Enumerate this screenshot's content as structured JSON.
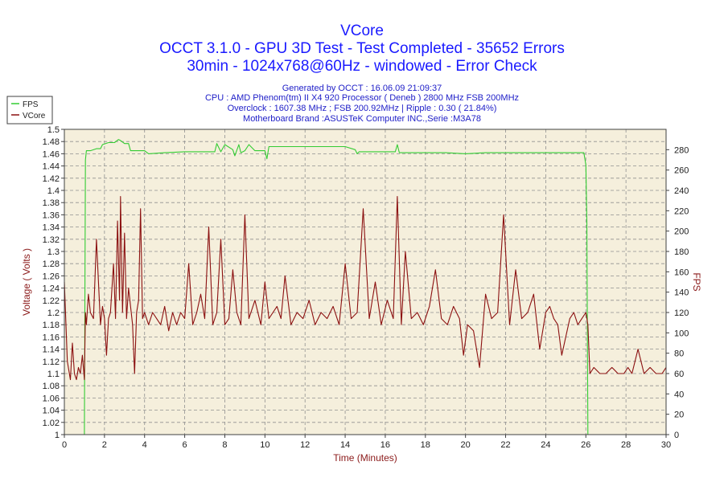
{
  "header": {
    "title": "VCore",
    "subtitle1": "OCCT 3.1.0 - GPU 3D Test - Test Completed - 35652 Errors",
    "subtitle2": "30min - 1024x768@60Hz - windowed - Error Check"
  },
  "info": {
    "generated": "Generated by OCCT : 16.06.09 21:09:37",
    "cpu": "CPU : AMD Phenom(tm) II X4 920 Processor ( Deneb ) 2800 MHz FSB 200MHz",
    "overclock": "Overclock : 1607.38 MHz ; FSB 200.92MHz | Ripple : 0.30 ( 21.84%)",
    "motherboard": "Motherboard Brand :ASUSTeK Computer INC.,Serie :M3A78"
  },
  "colors": {
    "fps": "#33cc33",
    "vcore": "#8b1010",
    "plot_bg": "#f5efdc",
    "title": "#1a1aff",
    "grid": "#909090"
  },
  "chart_data": {
    "type": "line",
    "title": "VCore",
    "xlabel": "Time (Minutes)",
    "ylabel": "Voltage ( Volts )",
    "y2label": "FPS",
    "xlim": [
      0,
      30
    ],
    "ylim": [
      1.0,
      1.5
    ],
    "y2lim": [
      0,
      300
    ],
    "x_ticks": [
      0,
      2,
      4,
      6,
      8,
      10,
      12,
      14,
      16,
      18,
      20,
      22,
      24,
      26,
      28,
      30
    ],
    "y_ticks": [
      "1",
      "1.02",
      "1.04",
      "1.06",
      "1.08",
      "1.1",
      "1.12",
      "1.14",
      "1.16",
      "1.18",
      "1.2",
      "1.22",
      "1.24",
      "1.26",
      "1.28",
      "1.3",
      "1.32",
      "1.34",
      "1.36",
      "1.38",
      "1.4",
      "1.42",
      "1.44",
      "1.46",
      "1.48",
      "1.5"
    ],
    "y2_ticks": [
      0,
      20,
      40,
      60,
      80,
      100,
      120,
      140,
      160,
      180,
      200,
      220,
      240,
      260,
      280
    ],
    "grid": true,
    "legend": "top-left",
    "series": [
      {
        "name": "FPS",
        "axis": "right",
        "x": [
          0,
          1.0,
          1.05,
          1.1,
          1.3,
          1.6,
          1.8,
          1.9,
          2.2,
          2.5,
          2.7,
          2.8,
          3.0,
          3.2,
          3.3,
          3.5,
          4.0,
          4.2,
          5.0,
          6.0,
          7.0,
          7.5,
          7.6,
          7.8,
          8.0,
          8.4,
          8.5,
          8.7,
          8.8,
          9.0,
          9.2,
          9.5,
          10.0,
          10.1,
          10.2,
          10.5,
          11.0,
          12.0,
          13.0,
          14.0,
          14.5,
          14.6,
          14.7,
          15.0,
          15.5,
          16.0,
          16.5,
          16.6,
          16.7,
          17.0,
          18.0,
          19.0,
          20.0,
          21.0,
          22.0,
          23.0,
          24.0,
          25.0,
          25.9,
          26.0,
          26.05,
          26.1
        ],
        "values": [
          0,
          0,
          270,
          279,
          279,
          281,
          281,
          285,
          287,
          287,
          290,
          289,
          286,
          286,
          279,
          279,
          279,
          276,
          277,
          278,
          278,
          278,
          286,
          278,
          285,
          280,
          274,
          285,
          277,
          279,
          285,
          279,
          279,
          271,
          283,
          283,
          283,
          283,
          283,
          283,
          280,
          276,
          278,
          278,
          278,
          278,
          278,
          285,
          277,
          277,
          277,
          277,
          276,
          277,
          277,
          277,
          277,
          277,
          277,
          265,
          210,
          0
        ]
      },
      {
        "name": "VCore",
        "axis": "left",
        "x": [
          0.0,
          0.15,
          0.3,
          0.4,
          0.5,
          0.6,
          0.7,
          0.8,
          0.9,
          1.0,
          1.05,
          1.1,
          1.2,
          1.3,
          1.45,
          1.6,
          1.8,
          1.9,
          2.0,
          2.1,
          2.2,
          2.3,
          2.45,
          2.55,
          2.65,
          2.75,
          2.8,
          2.9,
          3.0,
          3.1,
          3.2,
          3.3,
          3.4,
          3.5,
          3.6,
          3.7,
          3.8,
          3.9,
          4.0,
          4.1,
          4.2,
          4.4,
          4.6,
          4.8,
          5.0,
          5.2,
          5.4,
          5.6,
          5.8,
          6.0,
          6.2,
          6.4,
          6.6,
          6.8,
          7.0,
          7.2,
          7.4,
          7.6,
          7.8,
          8.0,
          8.2,
          8.4,
          8.6,
          8.8,
          9.0,
          9.2,
          9.5,
          9.8,
          10.0,
          10.2,
          10.4,
          10.6,
          10.8,
          11.0,
          11.3,
          11.6,
          11.9,
          12.2,
          12.5,
          12.8,
          13.1,
          13.4,
          13.7,
          14.0,
          14.3,
          14.6,
          14.9,
          15.2,
          15.5,
          15.8,
          16.1,
          16.4,
          16.6,
          16.8,
          17.0,
          17.3,
          17.6,
          17.9,
          18.2,
          18.5,
          18.8,
          19.1,
          19.4,
          19.7,
          19.9,
          20.1,
          20.4,
          20.7,
          21.0,
          21.3,
          21.6,
          21.9,
          22.2,
          22.5,
          22.8,
          23.1,
          23.4,
          23.7,
          24.0,
          24.2,
          24.4,
          24.6,
          24.8,
          25.0,
          25.2,
          25.4,
          25.6,
          25.8,
          26.0,
          26.1,
          26.2,
          26.4,
          26.7,
          27.0,
          27.3,
          27.6,
          27.9,
          28.1,
          28.3,
          28.6,
          28.9,
          29.2,
          29.5,
          29.8,
          30.0
        ],
        "values": [
          1.25,
          1.12,
          1.09,
          1.15,
          1.1,
          1.09,
          1.11,
          1.1,
          1.13,
          1.09,
          1.2,
          1.18,
          1.23,
          1.2,
          1.19,
          1.32,
          1.18,
          1.21,
          1.19,
          1.13,
          1.19,
          1.2,
          1.28,
          1.19,
          1.35,
          1.22,
          1.39,
          1.2,
          1.33,
          1.19,
          1.24,
          1.21,
          1.18,
          1.1,
          1.2,
          1.22,
          1.37,
          1.19,
          1.2,
          1.19,
          1.18,
          1.2,
          1.19,
          1.18,
          1.21,
          1.17,
          1.2,
          1.18,
          1.2,
          1.19,
          1.28,
          1.18,
          1.2,
          1.23,
          1.19,
          1.34,
          1.18,
          1.2,
          1.32,
          1.18,
          1.19,
          1.27,
          1.2,
          1.18,
          1.36,
          1.19,
          1.22,
          1.18,
          1.25,
          1.19,
          1.2,
          1.21,
          1.19,
          1.26,
          1.18,
          1.2,
          1.19,
          1.22,
          1.18,
          1.2,
          1.19,
          1.21,
          1.18,
          1.28,
          1.19,
          1.2,
          1.37,
          1.19,
          1.25,
          1.18,
          1.22,
          1.19,
          1.39,
          1.18,
          1.3,
          1.19,
          1.2,
          1.18,
          1.21,
          1.27,
          1.19,
          1.18,
          1.21,
          1.19,
          1.13,
          1.18,
          1.17,
          1.11,
          1.23,
          1.19,
          1.2,
          1.36,
          1.18,
          1.27,
          1.19,
          1.2,
          1.23,
          1.14,
          1.2,
          1.21,
          1.19,
          1.18,
          1.13,
          1.16,
          1.19,
          1.2,
          1.18,
          1.19,
          1.2,
          1.18,
          1.1,
          1.11,
          1.1,
          1.1,
          1.11,
          1.1,
          1.1,
          1.11,
          1.1,
          1.14,
          1.1,
          1.11,
          1.1,
          1.1,
          1.11
        ]
      }
    ]
  }
}
